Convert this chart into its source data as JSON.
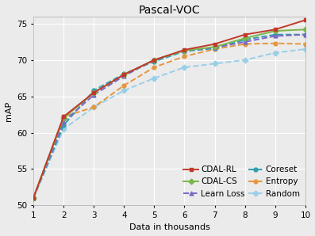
{
  "title": "Pascal-VOC",
  "xlabel": "Data in thousands",
  "ylabel": "mAP",
  "x": [
    1,
    2,
    3,
    4,
    5,
    6,
    7,
    8,
    9,
    10
  ],
  "ylim": [
    50,
    76
  ],
  "yticks": [
    50,
    55,
    60,
    65,
    70,
    75
  ],
  "series": [
    {
      "name": "CDAL-RL",
      "values": [
        51.0,
        62.2,
        65.5,
        68.0,
        70.0,
        71.4,
        72.2,
        73.5,
        74.2,
        75.5
      ],
      "color": "#c0392b",
      "linestyle": "-",
      "marker": "s",
      "zorder": 6
    },
    {
      "name": "CDAL-CS",
      "values": [
        51.0,
        62.0,
        65.5,
        68.0,
        70.0,
        71.3,
        71.8,
        73.0,
        74.0,
        74.2
      ],
      "color": "#7ab648",
      "linestyle": "-",
      "marker": "D",
      "zorder": 5
    },
    {
      "name": "Learn Loss",
      "values": [
        51.0,
        61.5,
        65.2,
        67.8,
        70.0,
        71.3,
        71.7,
        72.5,
        73.3,
        73.5
      ],
      "color": "#7b68c8",
      "linestyle": "--",
      "marker": "^",
      "zorder": 4
    },
    {
      "name": "Coreset",
      "values": [
        51.0,
        61.0,
        65.8,
        68.1,
        69.8,
        71.2,
        71.6,
        72.8,
        73.5,
        73.5
      ],
      "color": "#2e9fad",
      "linestyle": "--",
      "marker": "o",
      "zorder": 3
    },
    {
      "name": "Entropy",
      "values": [
        51.0,
        62.2,
        63.5,
        66.5,
        69.0,
        70.5,
        71.5,
        72.2,
        72.3,
        72.2
      ],
      "color": "#e5973e",
      "linestyle": "--",
      "marker": "o",
      "zorder": 2
    },
    {
      "name": "Random",
      "values": [
        51.0,
        60.5,
        63.5,
        65.8,
        67.5,
        69.0,
        69.5,
        70.0,
        71.0,
        71.5
      ],
      "color": "#9acfe8",
      "linestyle": "--",
      "marker": "D",
      "zorder": 1
    }
  ],
  "bg_color": "#ebebeb",
  "grid_color": "#ffffff",
  "legend_fontsize": 7.5,
  "title_fontsize": 10,
  "axis_fontsize": 8,
  "tick_fontsize": 7.5
}
